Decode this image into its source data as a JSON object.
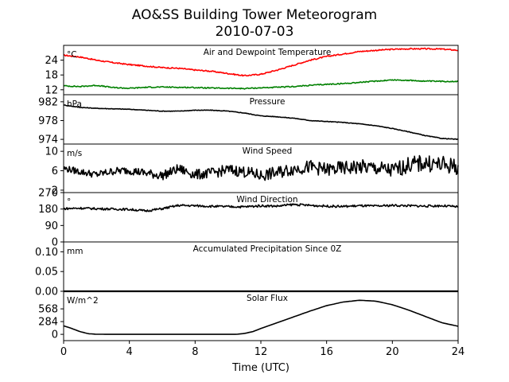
{
  "figure": {
    "title_line1": "AO&SS Building Tower Meteorogram",
    "title_line2": "2010-07-03",
    "xlabel": "Time (UTC)"
  },
  "chart_data": {
    "type": "line",
    "x_axis": {
      "label": "Time (UTC)",
      "range": [
        0,
        24
      ],
      "ticks": [
        0,
        4,
        8,
        12,
        16,
        20,
        24
      ],
      "tick_labels": [
        "0",
        "4",
        "8",
        "12",
        "16",
        "20",
        "24"
      ]
    },
    "panels": [
      {
        "key": "temp",
        "title": "Air and Dewpoint Temperature",
        "unit": "°C",
        "ylim": [
          10,
          30
        ],
        "yticks": [
          12,
          18,
          24
        ],
        "ytick_labels": [
          "12",
          "18",
          "24"
        ],
        "series": [
          {
            "color": "#ff0000",
            "x": [
              0,
              1,
              2,
              3,
              4,
              5,
              6,
              7,
              8,
              9,
              10,
              11,
              12,
              13,
              14,
              15,
              16,
              17,
              18,
              19,
              20,
              21,
              22,
              23,
              24
            ],
            "y": [
              26.0,
              25.3,
              24.0,
              23.0,
              22.2,
              21.6,
              21.0,
              20.7,
              20.0,
              19.5,
              18.6,
              17.7,
              18.3,
              20.0,
              22.0,
              24.0,
              25.5,
              26.5,
              27.5,
              28.0,
              28.4,
              28.6,
              28.6,
              28.5,
              28.0
            ]
          },
          {
            "color": "#008000",
            "x": [
              0,
              1,
              2,
              3,
              4,
              5,
              6,
              7,
              8,
              9,
              10,
              11,
              12,
              13,
              14,
              15,
              16,
              17,
              18,
              19,
              20,
              21,
              22,
              23,
              24
            ],
            "y": [
              13.6,
              13.3,
              13.8,
              12.9,
              12.6,
              13.0,
              13.1,
              13.0,
              12.9,
              12.7,
              12.6,
              12.5,
              12.8,
              13.0,
              13.3,
              13.8,
              14.2,
              14.5,
              15.0,
              15.5,
              16.0,
              15.8,
              15.5,
              15.4,
              15.4
            ]
          }
        ]
      },
      {
        "key": "pressure",
        "title": "Pressure",
        "unit": "hPa",
        "ylim": [
          973,
          983.5
        ],
        "yticks": [
          974,
          978,
          982
        ],
        "ytick_labels": [
          "974",
          "978",
          "982"
        ],
        "series": [
          {
            "color": "#000000",
            "x": [
              0,
              1,
              2,
              3,
              4,
              5,
              6,
              7,
              8,
              9,
              10,
              11,
              12,
              13,
              14,
              15,
              16,
              17,
              18,
              19,
              20,
              21,
              22,
              23,
              24
            ],
            "y": [
              981.3,
              980.8,
              980.6,
              980.5,
              980.4,
              980.2,
              980.0,
              980.0,
              980.2,
              980.2,
              980.0,
              979.6,
              979.0,
              978.8,
              978.5,
              978.0,
              977.8,
              977.6,
              977.3,
              976.9,
              976.3,
              975.6,
              974.8,
              974.2,
              974.0
            ]
          }
        ]
      },
      {
        "key": "wind_speed",
        "title": "Wind Speed",
        "unit": "m/s",
        "ylim": [
          1.5,
          11.5
        ],
        "yticks": [
          2,
          6,
          10
        ],
        "ytick_labels": [
          "2",
          "6",
          "10"
        ],
        "series": [
          {
            "color": "#000000",
            "x": [
              0,
              1,
              2,
              3,
              4,
              5,
              6,
              7,
              8,
              9,
              10,
              11,
              12,
              13,
              14,
              15,
              16,
              17,
              18,
              19,
              20,
              21,
              22,
              23,
              24
            ],
            "y": [
              6.5,
              5.8,
              5.2,
              5.9,
              6.1,
              5.5,
              5.0,
              6.4,
              5.2,
              5.5,
              6.2,
              5.8,
              5.0,
              5.6,
              6.4,
              6.8,
              6.2,
              6.5,
              6.8,
              6.5,
              6.0,
              7.2,
              7.6,
              7.2,
              6.8
            ]
          }
        ]
      },
      {
        "key": "wind_direction",
        "title": "Wind Direction",
        "unit": "°",
        "ylim": [
          0,
          270
        ],
        "yticks": [
          0,
          90,
          180,
          270
        ],
        "ytick_labels": [
          "0",
          "90",
          "180",
          "270"
        ],
        "series": [
          {
            "color": "#000000",
            "x": [
              0,
              1,
              2,
              3,
              4,
              5,
              6,
              7,
              8,
              9,
              10,
              11,
              12,
              13,
              14,
              15,
              16,
              17,
              18,
              19,
              20,
              21,
              22,
              23,
              24
            ],
            "y": [
              182,
              185,
              182,
              180,
              178,
              170,
              182,
              200,
              198,
              195,
              193,
              192,
              198,
              196,
              205,
              200,
              196,
              194,
              198,
              196,
              200,
              198,
              196,
              198,
              192
            ]
          }
        ]
      },
      {
        "key": "precip",
        "title": "Accumulated Precipitation Since 0Z",
        "unit": "mm",
        "ylim": [
          0,
          0.125
        ],
        "yticks": [
          0.0,
          0.05,
          0.1
        ],
        "ytick_labels": [
          "0.00",
          "0.05",
          "0.10"
        ],
        "series": [
          {
            "color": "#000000",
            "x": [
              0,
              24
            ],
            "y": [
              0,
              0
            ]
          }
        ]
      },
      {
        "key": "solar",
        "title": "Solar Flux",
        "unit": "W/m^2",
        "ylim": [
          -140,
          960
        ],
        "yticks": [
          0,
          284,
          568
        ],
        "ytick_labels": [
          "0",
          "284",
          "568"
        ],
        "series": [
          {
            "color": "#000000",
            "x": [
              0,
              0.5,
              1,
              1.5,
              2,
              3,
              4,
              6,
              8,
              10,
              10.5,
              11,
              11.5,
              12,
              13,
              14,
              15,
              16,
              17,
              18,
              19,
              20,
              21,
              22,
              23,
              24
            ],
            "y": [
              190,
              130,
              60,
              15,
              2,
              0,
              0,
              0,
              0,
              0,
              0,
              20,
              60,
              130,
              260,
              390,
              520,
              640,
              720,
              760,
              740,
              660,
              540,
              400,
              260,
              180
            ]
          }
        ]
      }
    ]
  }
}
